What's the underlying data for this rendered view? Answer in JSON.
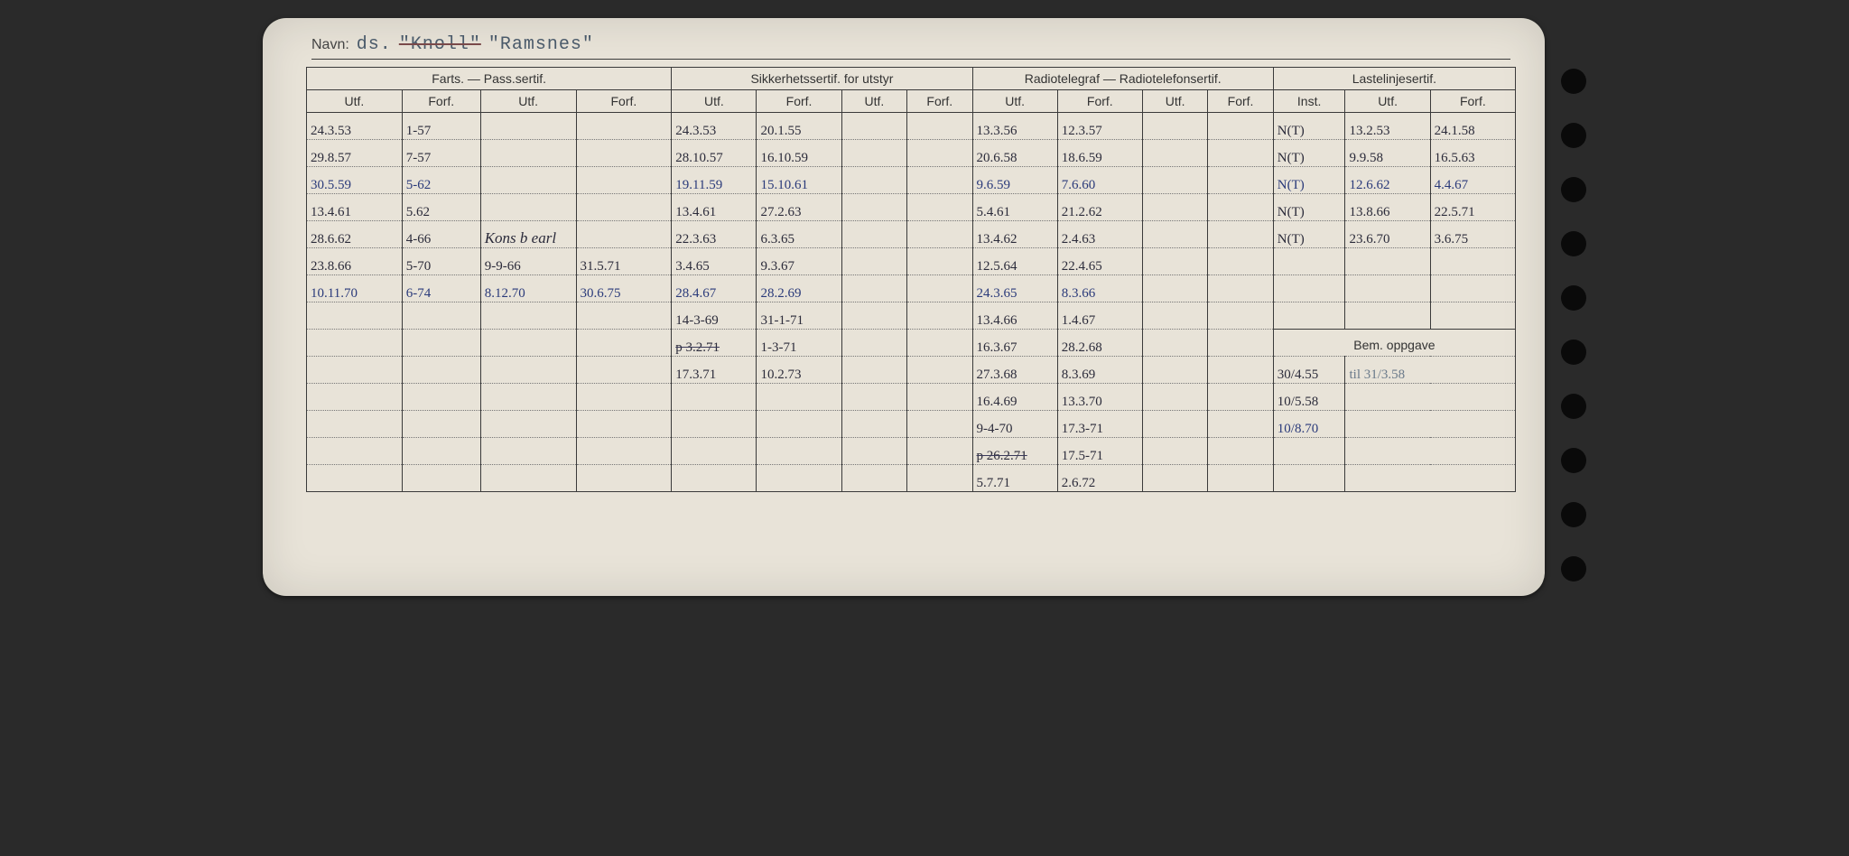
{
  "labels": {
    "navn": "Navn:",
    "farts": "Farts. — Pass.sertif.",
    "sikkerhet": "Sikkerhetssertif. for utstyr",
    "radio": "Radiotelegraf — Radiotelefonsertif.",
    "lastelinje": "Lastelinjesertif.",
    "utf": "Utf.",
    "forf": "Forf.",
    "inst": "Inst.",
    "bem": "Bem. oppgave"
  },
  "name": {
    "prefix": "ds.",
    "struck": "\"Knoll\"",
    "current": "\"Ramsnes\""
  },
  "rows": [
    {
      "f_utf": "24.3.53",
      "f_forf": "1-57",
      "f_utf2": "",
      "f_forf2": "",
      "s_utf": "24.3.53",
      "s_forf": "20.1.55",
      "s_utf2": "",
      "s_forf2": "",
      "r_utf": "13.3.56",
      "r_forf": "12.3.57",
      "r_utf2": "",
      "r_forf2": "",
      "l_inst": "N(T)",
      "l_utf": "13.2.53",
      "l_forf": "24.1.58"
    },
    {
      "f_utf": "29.8.57",
      "f_forf": "7-57",
      "f_utf2": "",
      "f_forf2": "",
      "s_utf": "28.10.57",
      "s_forf": "16.10.59",
      "s_utf2": "",
      "s_forf2": "",
      "r_utf": "20.6.58",
      "r_forf": "18.6.59",
      "r_utf2": "",
      "r_forf2": "",
      "l_inst": "N(T)",
      "l_utf": "9.9.58",
      "l_forf": "16.5.63"
    },
    {
      "f_utf": "30.5.59",
      "f_forf": "5-62",
      "f_utf2": "",
      "f_forf2": "",
      "s_utf": "19.11.59",
      "s_forf": "15.10.61",
      "s_utf2": "",
      "s_forf2": "",
      "r_utf": "9.6.59",
      "r_forf": "7.6.60",
      "r_utf2": "",
      "r_forf2": "",
      "l_inst": "N(T)",
      "l_utf": "12.6.62",
      "l_forf": "4.4.67",
      "blue": true
    },
    {
      "f_utf": "13.4.61",
      "f_forf": "5.62",
      "f_utf2": "",
      "f_forf2": "",
      "s_utf": "13.4.61",
      "s_forf": "27.2.63",
      "s_utf2": "",
      "s_forf2": "",
      "r_utf": "5.4.61",
      "r_forf": "21.2.62",
      "r_utf2": "",
      "r_forf2": "",
      "l_inst": "N(T)",
      "l_utf": "13.8.66",
      "l_forf": "22.5.71"
    },
    {
      "f_utf": "28.6.62",
      "f_forf": "4-66",
      "f_utf2": "Kons b earl",
      "f_forf2": "",
      "s_utf": "22.3.63",
      "s_forf": "6.3.65",
      "s_utf2": "",
      "s_forf2": "",
      "r_utf": "13.4.62",
      "r_forf": "2.4.63",
      "r_utf2": "",
      "r_forf2": "",
      "l_inst": "N(T)",
      "l_utf": "23.6.70",
      "l_forf": "3.6.75",
      "f_utf2_cursive": true
    },
    {
      "f_utf": "23.8.66",
      "f_forf": "5-70",
      "f_utf2": "9-9-66",
      "f_forf2": "31.5.71",
      "s_utf": "3.4.65",
      "s_forf": "9.3.67",
      "s_utf2": "",
      "s_forf2": "",
      "r_utf": "12.5.64",
      "r_forf": "22.4.65",
      "r_utf2": "",
      "r_forf2": "",
      "l_inst": "",
      "l_utf": "",
      "l_forf": ""
    },
    {
      "f_utf": "10.11.70",
      "f_forf": "6-74",
      "f_utf2": "8.12.70",
      "f_forf2": "30.6.75",
      "s_utf": "28.4.67",
      "s_forf": "28.2.69",
      "s_utf2": "",
      "s_forf2": "",
      "r_utf": "24.3.65",
      "r_forf": "8.3.66",
      "r_utf2": "",
      "r_forf2": "",
      "l_inst": "",
      "l_utf": "",
      "l_forf": "",
      "blue": true
    },
    {
      "f_utf": "",
      "f_forf": "",
      "f_utf2": "",
      "f_forf2": "",
      "s_utf": "14-3-69",
      "s_forf": "31-1-71",
      "s_utf2": "",
      "s_forf2": "",
      "r_utf": "13.4.66",
      "r_forf": "1.4.67",
      "r_utf2": "",
      "r_forf2": "",
      "l_inst": "",
      "l_utf": "",
      "l_forf": ""
    },
    {
      "f_utf": "",
      "f_forf": "",
      "f_utf2": "",
      "f_forf2": "",
      "s_utf": "p 3.2.71",
      "s_forf": "1-3-71",
      "s_utf2": "",
      "s_forf2": "",
      "r_utf": "16.3.67",
      "r_forf": "28.2.68",
      "r_utf2": "",
      "r_forf2": "",
      "bem_header": true,
      "s_struck": true
    },
    {
      "f_utf": "",
      "f_forf": "",
      "f_utf2": "",
      "f_forf2": "",
      "s_utf": "17.3.71",
      "s_forf": "10.2.73",
      "s_utf2": "",
      "s_forf2": "",
      "r_utf": "27.3.68",
      "r_forf": "8.3.69",
      "r_utf2": "",
      "r_forf2": "",
      "bem1": "30/4.55",
      "bem2": "til 31/3.58"
    },
    {
      "f_utf": "",
      "f_forf": "",
      "f_utf2": "",
      "f_forf2": "",
      "s_utf": "",
      "s_forf": "",
      "s_utf2": "",
      "s_forf2": "",
      "r_utf": "16.4.69",
      "r_forf": "13.3.70",
      "r_utf2": "",
      "r_forf2": "",
      "bem1": "10/5.58",
      "bem2": ""
    },
    {
      "f_utf": "",
      "f_forf": "",
      "f_utf2": "",
      "f_forf2": "",
      "s_utf": "",
      "s_forf": "",
      "s_utf2": "",
      "s_forf2": "",
      "r_utf": "9-4-70",
      "r_forf": "17.3-71",
      "r_utf2": "",
      "r_forf2": "",
      "bem1": "10/8.70",
      "bem2": "",
      "bem1_blue": true
    },
    {
      "f_utf": "",
      "f_forf": "",
      "f_utf2": "",
      "f_forf2": "",
      "s_utf": "",
      "s_forf": "",
      "s_utf2": "",
      "s_forf2": "",
      "r_utf": "p 26.2.71",
      "r_forf": "17.5-71",
      "r_utf2": "",
      "r_forf2": "",
      "bem1": "",
      "bem2": "",
      "r_struck": true
    },
    {
      "f_utf": "",
      "f_forf": "",
      "f_utf2": "",
      "f_forf2": "",
      "s_utf": "",
      "s_forf": "",
      "s_utf2": "",
      "s_forf2": "",
      "r_utf": "5.7.71",
      "r_forf": "2.6.72",
      "r_utf2": "",
      "r_forf2": "",
      "bem1": "",
      "bem2": "",
      "last": true
    }
  ]
}
